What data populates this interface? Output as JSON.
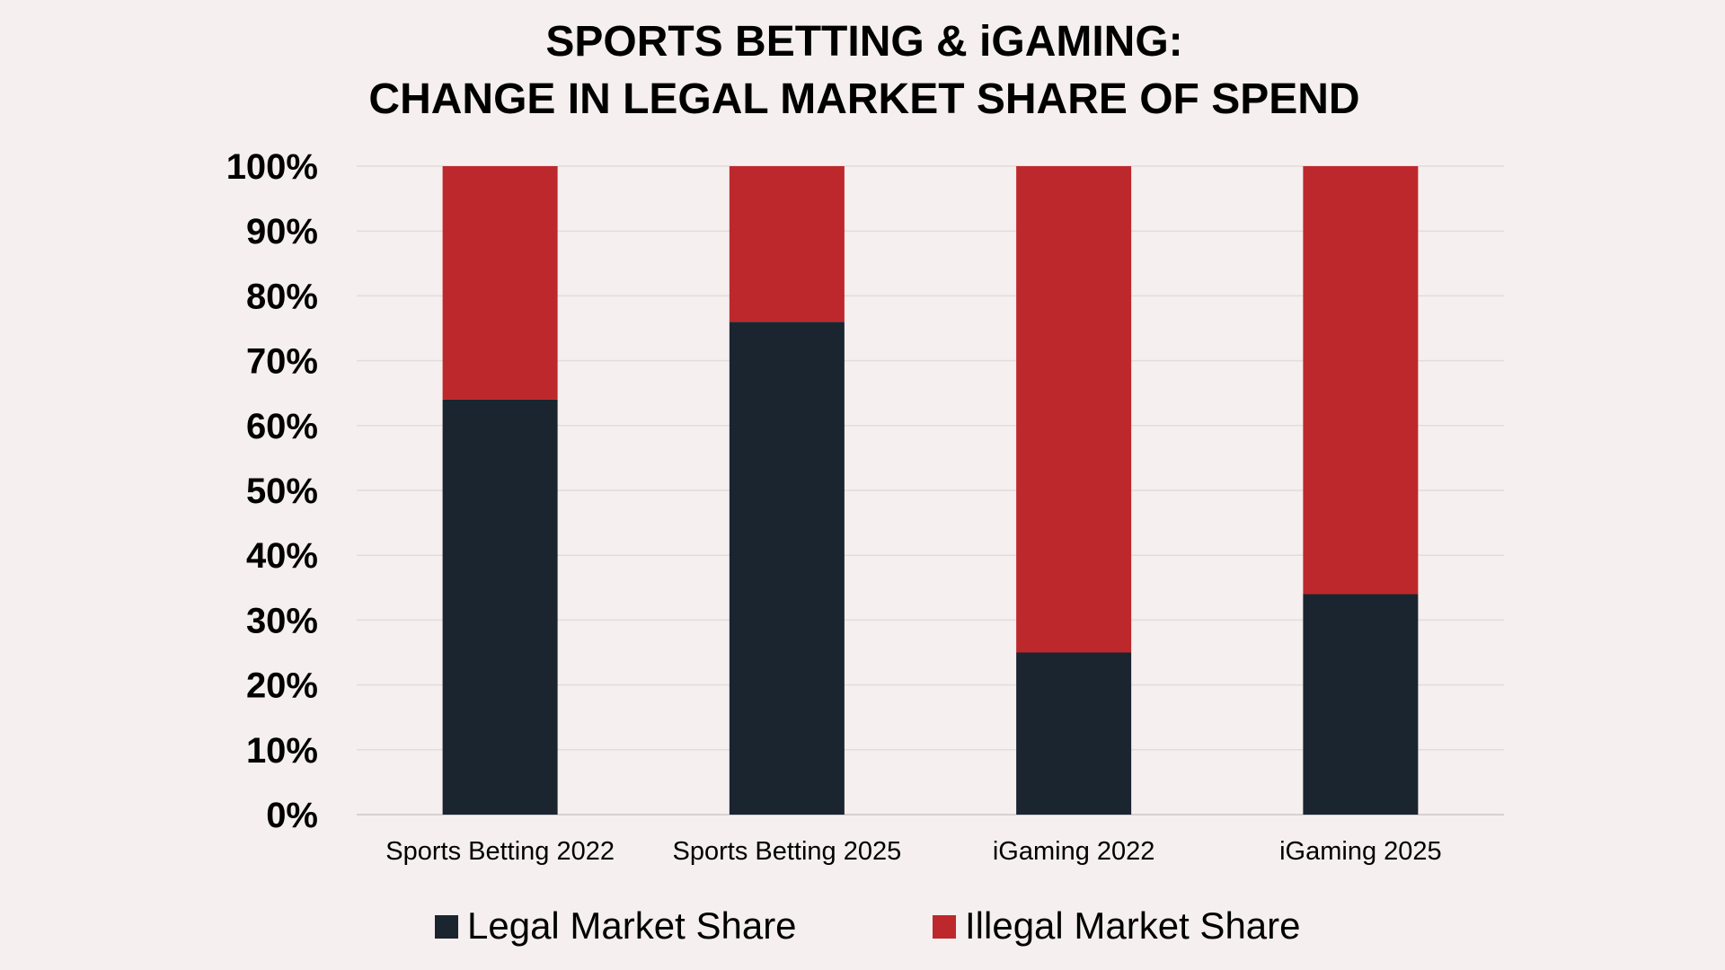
{
  "chart_data": {
    "type": "bar",
    "stacked": true,
    "title_lines": [
      "SPORTS BETTING & iGAMING:",
      "CHANGE IN LEGAL MARKET SHARE OF SPEND"
    ],
    "categories": [
      "Sports Betting 2022",
      "Sports Betting 2025",
      "iGaming 2022",
      "iGaming 2025"
    ],
    "series": [
      {
        "name": "Legal Market Share",
        "values": [
          64,
          76,
          25,
          34
        ],
        "color": "#1a2530"
      },
      {
        "name": "Illegal Market Share",
        "values": [
          36,
          24,
          75,
          66
        ],
        "color": "#bd282c"
      }
    ],
    "ylim": [
      0,
      100
    ],
    "yticks": [
      0,
      10,
      20,
      30,
      40,
      50,
      60,
      70,
      80,
      90,
      100
    ],
    "ytick_labels": [
      "0%",
      "10%",
      "20%",
      "30%",
      "40%",
      "50%",
      "60%",
      "70%",
      "80%",
      "90%",
      "100%"
    ],
    "grid": true,
    "legend_position": "bottom-center"
  }
}
